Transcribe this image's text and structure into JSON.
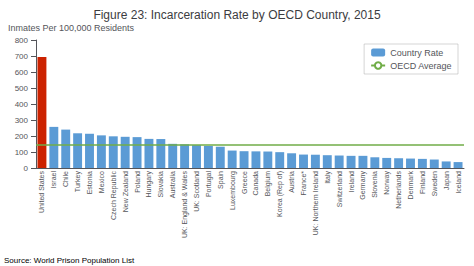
{
  "chart_data": {
    "type": "bar",
    "title": "Figure 23: Incarceration Rate by OECD Country, 2015",
    "ylabel": "Inmates Per 100,000 Residents",
    "annotation": "Source: World Prison Population List",
    "categories": [
      "United States",
      "Israel",
      "Chile",
      "Turkey",
      "Estonia",
      "Mexico",
      "Czech Republic",
      "New Zealand",
      "Poland",
      "Hungary",
      "Slovakia",
      "Australia",
      "UK: England & Wales",
      "UK: Scotland",
      "Portugal",
      "Spain",
      "Luxembourg",
      "Greece",
      "Canada",
      "Belgium",
      "Korea (Rep of)",
      "Austria",
      "France*",
      "UK: Northern Ireland",
      "Italy",
      "Switzerland",
      "Ireland",
      "Germany",
      "Slovenia",
      "Norway",
      "Netherlands",
      "Denmark",
      "Finland",
      "Sweden",
      "Japan",
      "Iceland"
    ],
    "series": [
      {
        "name": "Country Rate",
        "type": "bar",
        "color": "#5b9bd5",
        "values": [
          693,
          257,
          240,
          217,
          214,
          204,
          198,
          195,
          193,
          182,
          181,
          151,
          148,
          143,
          138,
          133,
          109,
          105,
          104,
          103,
          99,
          92,
          84,
          83,
          80,
          78,
          76,
          76,
          67,
          63,
          61,
          59,
          57,
          53,
          41,
          37
        ],
        "colors": [
          "#cc2200",
          "#5b9bd5",
          "#5b9bd5",
          "#5b9bd5",
          "#5b9bd5",
          "#5b9bd5",
          "#5b9bd5",
          "#5b9bd5",
          "#5b9bd5",
          "#5b9bd5",
          "#5b9bd5",
          "#5b9bd5",
          "#5b9bd5",
          "#5b9bd5",
          "#5b9bd5",
          "#5b9bd5",
          "#5b9bd5",
          "#5b9bd5",
          "#5b9bd5",
          "#5b9bd5",
          "#5b9bd5",
          "#5b9bd5",
          "#5b9bd5",
          "#5b9bd5",
          "#5b9bd5",
          "#5b9bd5",
          "#5b9bd5",
          "#5b9bd5",
          "#5b9bd5",
          "#5b9bd5",
          "#5b9bd5",
          "#5b9bd5",
          "#5b9bd5",
          "#5b9bd5",
          "#5b9bd5",
          "#5b9bd5"
        ]
      },
      {
        "name": "OECD Average",
        "type": "hline",
        "color": "#70ad47",
        "value": 145
      }
    ],
    "ylim": [
      0,
      800
    ],
    "yticks": [
      0,
      100,
      200,
      300,
      400,
      500,
      600,
      700,
      800
    ],
    "grid": false,
    "legend": "upper right"
  }
}
